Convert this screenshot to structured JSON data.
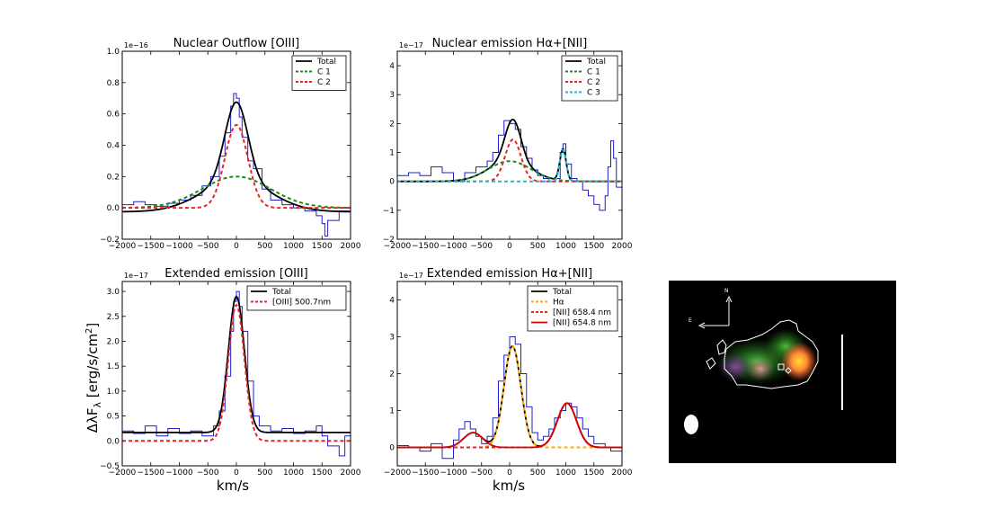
{
  "figure": {
    "ylabel": "ΔλF",
    "ylabel_sub": "λ",
    "ylabel_units": " [erg/s/cm",
    "ylabel_sup": "2",
    "ylabel_close": "]",
    "xlabel": "km/s"
  },
  "inset_image": {
    "north_label": "N",
    "east_label": "E",
    "colors": {
      "background": "#000000",
      "contour": "#ffffff"
    }
  },
  "chart_data": [
    {
      "id": "p1",
      "type": "line",
      "title": "Nuclear Outflow [OIII]",
      "y_multiplier": "1e−16",
      "xlim": [
        -2000,
        2000
      ],
      "ylim": [
        -0.2,
        1.0
      ],
      "x_ticks": [
        -2000,
        -1500,
        -1000,
        -500,
        0,
        500,
        1000,
        1500,
        2000
      ],
      "x_tick_labels": [
        "−2000",
        "−1500",
        "−1000",
        "−500",
        "0",
        "500",
        "1000",
        "1500",
        "2000"
      ],
      "y_ticks": [
        -0.2,
        0.0,
        0.2,
        0.4,
        0.6,
        0.8,
        1.0
      ],
      "y_tick_labels": [
        "−0.2",
        "0.0",
        "0.2",
        "0.4",
        "0.6",
        "0.8",
        "1.0"
      ],
      "legend": [
        "Total",
        "C 1",
        "C 2"
      ],
      "data": {
        "x": [
          -2000,
          -1800,
          -1600,
          -1400,
          -1200,
          -1000,
          -800,
          -600,
          -450,
          -300,
          -200,
          -100,
          -50,
          0,
          50,
          100,
          200,
          300,
          450,
          600,
          800,
          1000,
          1200,
          1400,
          1500,
          1550,
          1600,
          1800,
          2000
        ],
        "y": [
          0.02,
          0.04,
          0.02,
          0.01,
          0.03,
          0.05,
          0.08,
          0.14,
          0.2,
          0.33,
          0.48,
          0.65,
          0.73,
          0.7,
          0.58,
          0.45,
          0.3,
          0.25,
          0.12,
          0.05,
          0.02,
          0.0,
          -0.02,
          -0.05,
          -0.1,
          -0.18,
          -0.08,
          -0.02,
          0.08
        ]
      },
      "series": [
        {
          "name": "Total",
          "color": "#000000",
          "dash": "solid",
          "model": "const(-0.025) + gauss(amp=0.2,mu=0,sigma=600) + gauss(amp=0.5,mu=0,sigma=200)"
        },
        {
          "name": "C 1",
          "color": "#1a8a1a",
          "dash": "dashed",
          "model": "const(0.0) + gauss(amp=0.2,mu=0,sigma=600)"
        },
        {
          "name": "C 2",
          "color": "#ee2222",
          "dash": "dashed",
          "model": "gauss(amp=0.53,mu=0,sigma=200)"
        }
      ]
    },
    {
      "id": "p2",
      "type": "line",
      "title": "Nuclear emission Hα+[NII]",
      "y_multiplier": "1e−17",
      "xlim": [
        -2000,
        2000
      ],
      "ylim": [
        -2,
        4.5
      ],
      "x_ticks": [
        -2000,
        -1500,
        -1000,
        -500,
        0,
        500,
        1000,
        1500,
        2000
      ],
      "x_tick_labels": [
        "−2000",
        "−1500",
        "−1000",
        "−500",
        "0",
        "500",
        "1000",
        "1500",
        "2000"
      ],
      "y_ticks": [
        -2,
        -1,
        0,
        1,
        2,
        3,
        4
      ],
      "y_tick_labels": [
        "−2",
        "−1",
        "0",
        "1",
        "2",
        "3",
        "4"
      ],
      "legend": [
        "Total",
        "C 1",
        "C 2",
        "C 3"
      ],
      "data": {
        "x": [
          -2000,
          -1800,
          -1600,
          -1400,
          -1200,
          -1000,
          -800,
          -600,
          -400,
          -300,
          -200,
          -100,
          0,
          100,
          200,
          300,
          400,
          500,
          600,
          700,
          800,
          900,
          950,
          1000,
          1100,
          1200,
          1300,
          1400,
          1500,
          1600,
          1700,
          1750,
          1800,
          1850,
          1900,
          2000
        ],
        "y": [
          0.2,
          0.3,
          0.2,
          0.5,
          0.3,
          0.0,
          0.3,
          0.5,
          0.7,
          1.0,
          1.6,
          2.1,
          2.0,
          1.8,
          1.2,
          0.8,
          0.4,
          0.2,
          0.1,
          0.0,
          0.1,
          1.0,
          1.3,
          0.6,
          0.1,
          0.0,
          -0.3,
          -0.5,
          -0.8,
          -1.0,
          -0.5,
          0.5,
          1.4,
          0.8,
          -0.2,
          -0.5
        ]
      },
      "series": [
        {
          "name": "Total",
          "color": "#000000",
          "dash": "solid",
          "model": "gauss(amp=0.7,mu=0,sigma=380) + gauss(amp=1.45,mu=60,sigma=140) + gauss(amp=1.1,mu=950,sigma=55)"
        },
        {
          "name": "C 1",
          "color": "#1a8a1a",
          "dash": "dashed",
          "model": "gauss(amp=0.7,mu=0,sigma=380)"
        },
        {
          "name": "C 2",
          "color": "#ee2222",
          "dash": "dashed",
          "model": "gauss(amp=1.45,mu=60,sigma=140)"
        },
        {
          "name": "C 3",
          "color": "#22bbcc",
          "dash": "dashed",
          "model": "gauss(amp=1.1,mu=950,sigma=55)"
        }
      ]
    },
    {
      "id": "p3",
      "type": "line",
      "title": "Extended emission [OIII]",
      "y_multiplier": "1e−17",
      "xlim": [
        -2000,
        2000
      ],
      "ylim": [
        -0.5,
        3.2
      ],
      "x_ticks": [
        -2000,
        -1500,
        -1000,
        -500,
        0,
        500,
        1000,
        1500,
        2000
      ],
      "x_tick_labels": [
        "−2000",
        "−1500",
        "−1000",
        "−500",
        "0",
        "500",
        "1000",
        "1500",
        "2000"
      ],
      "y_ticks": [
        -0.5,
        0.0,
        0.5,
        1.0,
        1.5,
        2.0,
        2.5,
        3.0
      ],
      "y_tick_labels": [
        "−0.5",
        "0.0",
        "0.5",
        "1.0",
        "1.5",
        "2.0",
        "2.5",
        "3.0"
      ],
      "legend": [
        "Total",
        "[OIII] 500.7nm"
      ],
      "data": {
        "x": [
          -2000,
          -1800,
          -1600,
          -1400,
          -1200,
          -1000,
          -800,
          -600,
          -400,
          -300,
          -200,
          -100,
          -50,
          0,
          50,
          100,
          200,
          300,
          400,
          600,
          800,
          1000,
          1200,
          1400,
          1500,
          1600,
          1800,
          1900,
          2000
        ],
        "y": [
          0.2,
          0.15,
          0.3,
          0.1,
          0.25,
          0.15,
          0.2,
          0.1,
          0.3,
          0.6,
          1.3,
          2.2,
          2.8,
          3.0,
          2.7,
          2.2,
          1.2,
          0.5,
          0.3,
          0.2,
          0.25,
          0.15,
          0.2,
          0.3,
          0.1,
          -0.1,
          -0.3,
          0.1,
          -0.4
        ]
      },
      "series": [
        {
          "name": "Total",
          "color": "#000000",
          "dash": "solid",
          "model": "const(0.17) + gauss(amp=2.73,mu=0,sigma=140)"
        },
        {
          "name": "[OIII] 500.7nm",
          "color": "#ee2222",
          "dash": "dashed",
          "model": "gauss(amp=2.73,mu=0,sigma=140)"
        }
      ]
    },
    {
      "id": "p4",
      "type": "line",
      "title": "Extended emission Hα+[NII]",
      "y_multiplier": "1e−17",
      "xlim": [
        -2000,
        2000
      ],
      "ylim": [
        -0.5,
        4.5
      ],
      "x_ticks": [
        -2000,
        -1500,
        -1000,
        -500,
        0,
        500,
        1000,
        1500,
        2000
      ],
      "x_tick_labels": [
        "−2000",
        "−1500",
        "−1000",
        "−500",
        "0",
        "500",
        "1000",
        "1500",
        "2000"
      ],
      "y_ticks": [
        0,
        1,
        2,
        3,
        4
      ],
      "y_tick_labels": [
        "0",
        "1",
        "2",
        "3",
        "4"
      ],
      "legend": [
        "Total",
        "Hα",
        "[NII] 658.4 nm",
        "[NII] 654.8 nm"
      ],
      "data": {
        "x": [
          -2000,
          -1800,
          -1600,
          -1400,
          -1200,
          -1000,
          -900,
          -800,
          -700,
          -600,
          -500,
          -400,
          -300,
          -200,
          -100,
          0,
          100,
          200,
          300,
          400,
          500,
          600,
          700,
          800,
          900,
          1000,
          1100,
          1200,
          1300,
          1400,
          1500,
          1600,
          1700,
          1800,
          2000
        ],
        "y": [
          0.05,
          0.0,
          -0.1,
          0.1,
          -0.3,
          0.2,
          0.5,
          0.7,
          0.5,
          0.3,
          0.1,
          0.3,
          0.8,
          1.8,
          2.5,
          3.0,
          2.8,
          2.0,
          1.1,
          0.4,
          0.2,
          0.3,
          0.5,
          0.8,
          1.0,
          1.2,
          1.1,
          0.8,
          0.5,
          0.3,
          0.1,
          0.1,
          0.0,
          -0.1,
          0.1
        ]
      },
      "series": [
        {
          "name": "Total",
          "color": "#000000",
          "dash": "solid",
          "model": "gauss(amp=2.75,mu=50,sigma=150) + gauss(amp=1.2,mu=1020,sigma=170) + gauss(amp=0.4,mu=-650,sigma=170)"
        },
        {
          "name": "Hα",
          "color": "#ffaa00",
          "dash": "dashed",
          "model": "gauss(amp=2.75,mu=50,sigma=150)"
        },
        {
          "name": "[NII] 658.4 nm",
          "color": "#ee2222",
          "dash": "dashed",
          "model": "gauss(amp=1.2,mu=1020,sigma=170)"
        },
        {
          "name": "[NII] 654.8 nm",
          "color": "#dd0000",
          "dash": "solid",
          "model": "gauss(amp=1.2,mu=1020,sigma=170) + gauss(amp=0.4,mu=-650,sigma=170)"
        }
      ]
    }
  ]
}
